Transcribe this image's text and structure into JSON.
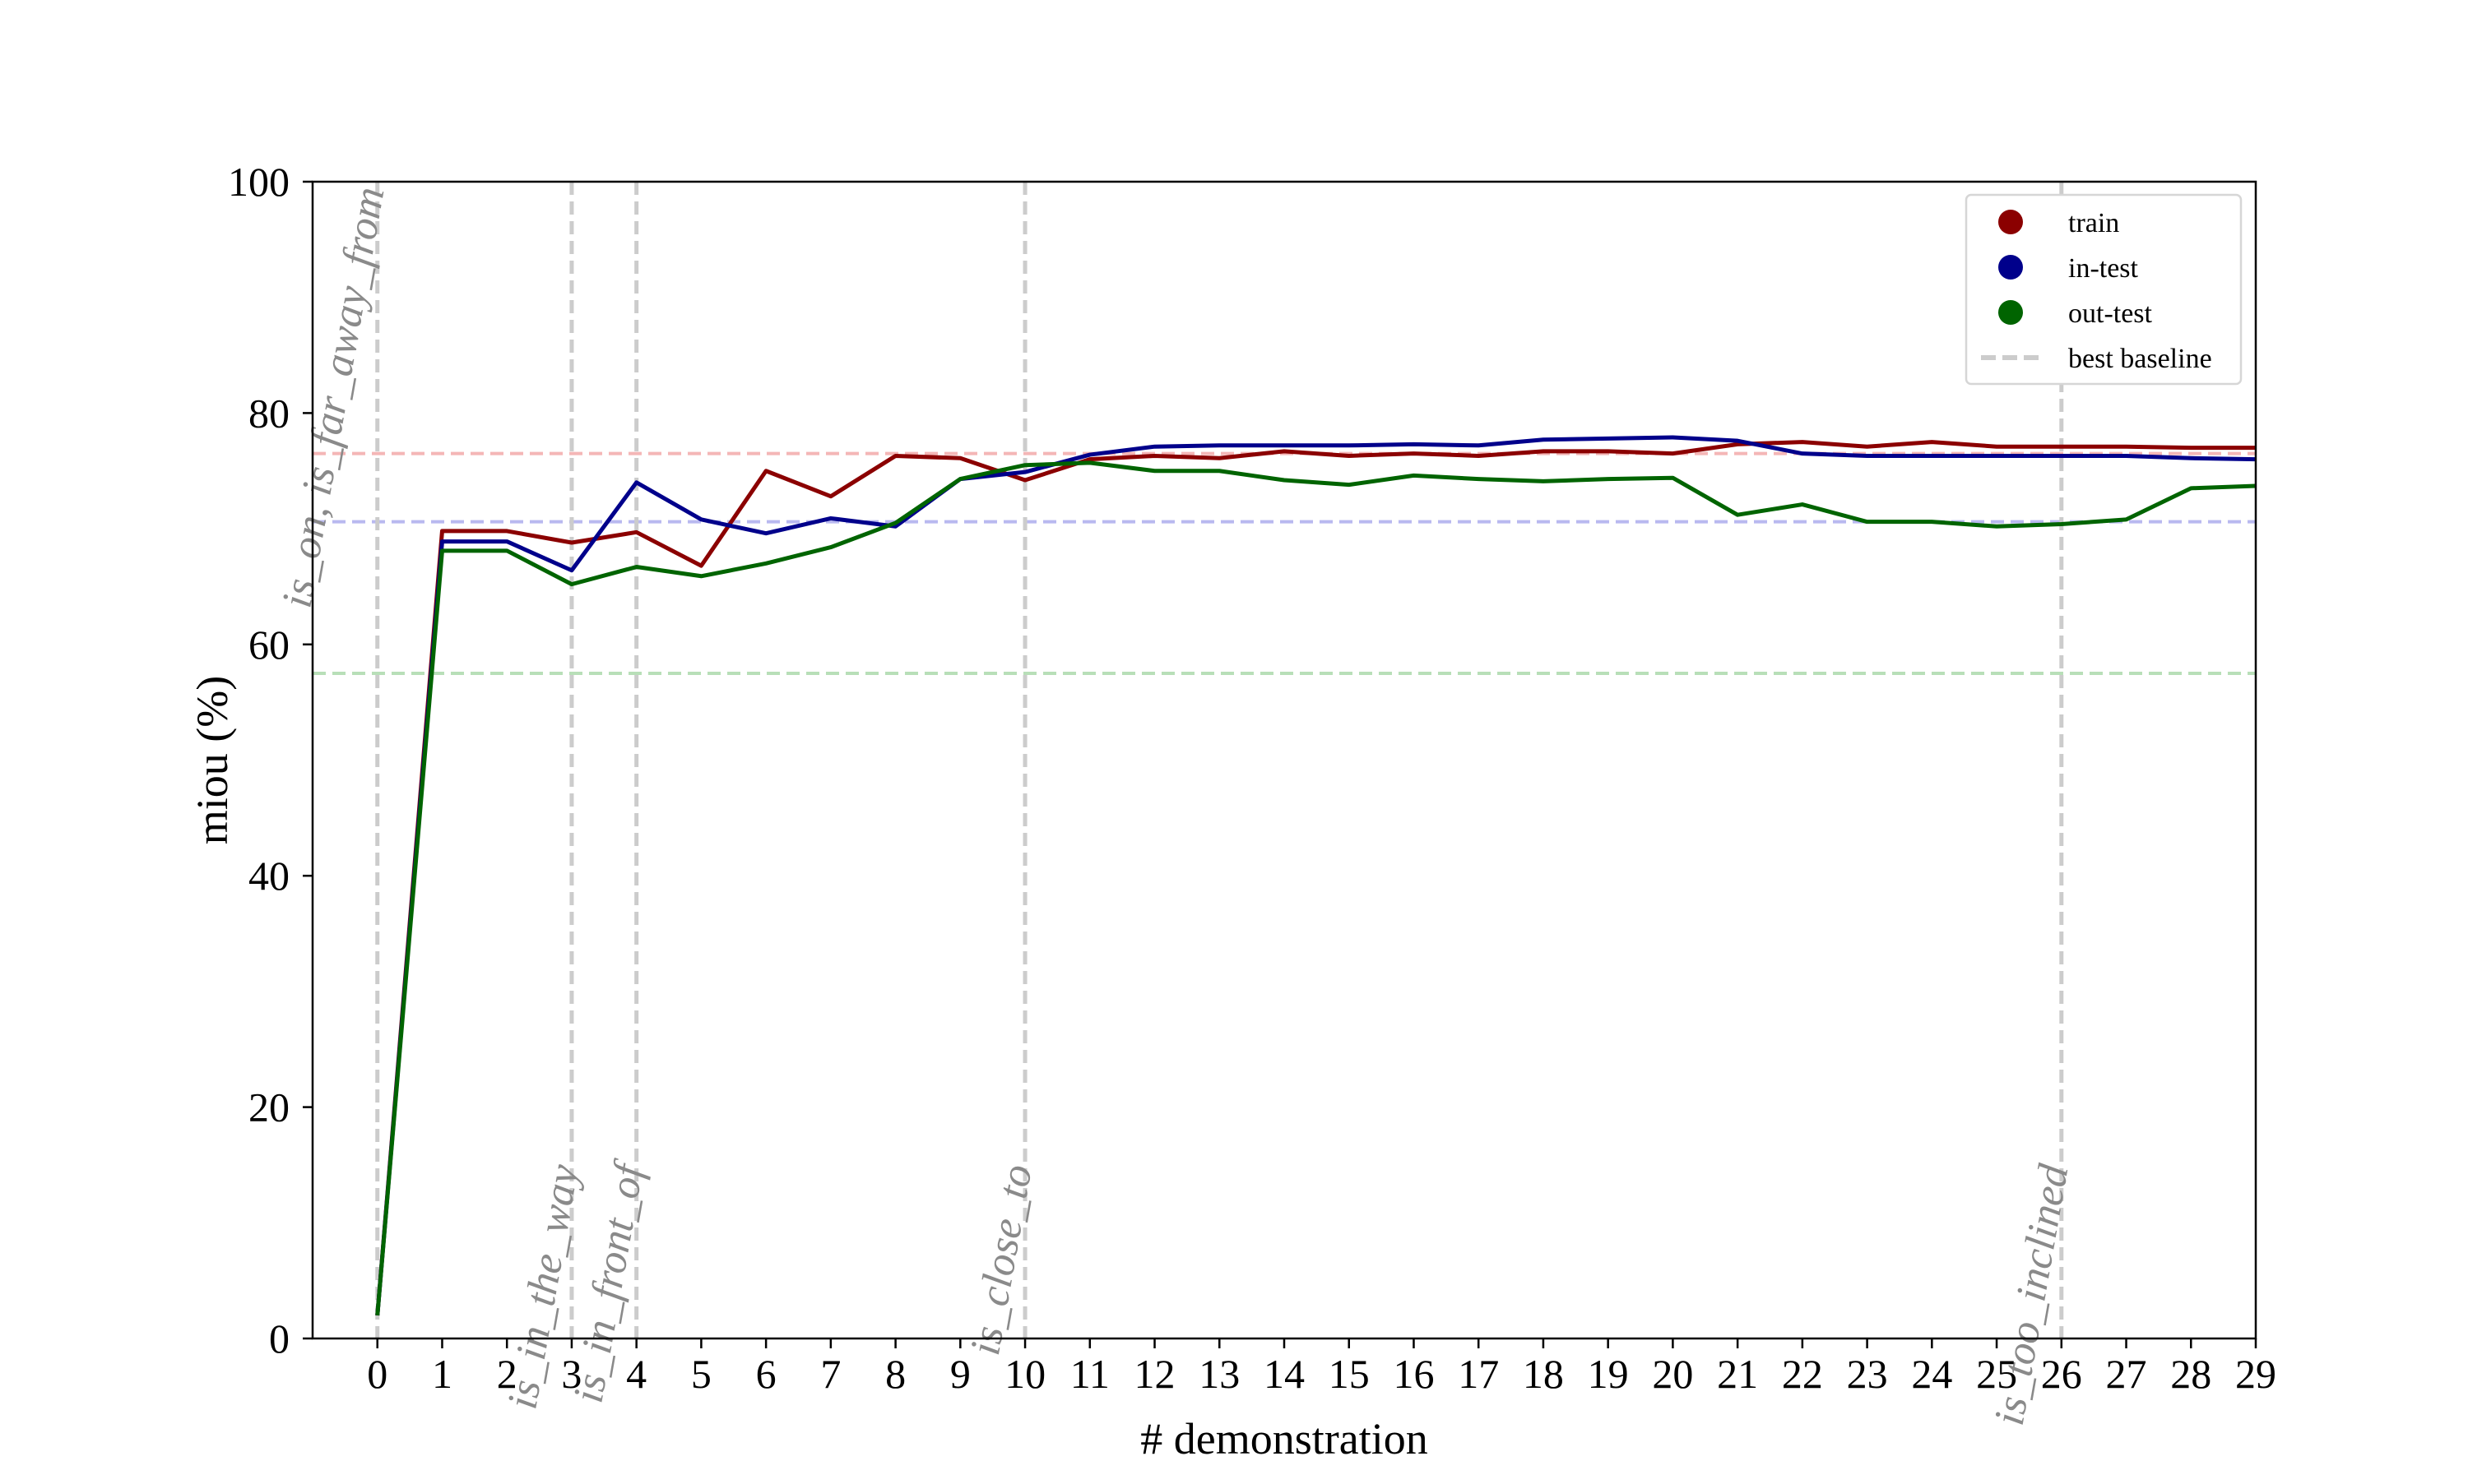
{
  "chart_data": {
    "type": "line",
    "title": "",
    "xlabel": "# demonstration",
    "ylabel": "miou (%)",
    "xlim": [
      -1,
      29
    ],
    "ylim": [
      0,
      100
    ],
    "xticks": [
      0,
      1,
      2,
      3,
      4,
      5,
      6,
      7,
      8,
      9,
      10,
      11,
      12,
      13,
      14,
      15,
      16,
      17,
      18,
      19,
      20,
      21,
      22,
      23,
      24,
      25,
      26,
      27,
      28,
      29
    ],
    "yticks": [
      0,
      20,
      40,
      60,
      80,
      100
    ],
    "grid": false,
    "legend_position": "top-right",
    "x": [
      0,
      1,
      2,
      3,
      4,
      5,
      6,
      7,
      8,
      9,
      10,
      11,
      12,
      13,
      14,
      15,
      16,
      17,
      18,
      19,
      20,
      21,
      22,
      23,
      24,
      25,
      26,
      27,
      28,
      29
    ],
    "series": [
      {
        "name": "train",
        "color": "#8b0000",
        "values": [
          2,
          69.8,
          69.8,
          68.8,
          69.7,
          66.8,
          75,
          72.8,
          76.3,
          76.1,
          74.2,
          76,
          76.3,
          76.1,
          76.7,
          76.3,
          76.5,
          76.3,
          76.7,
          76.7,
          76.5,
          77.3,
          77.5,
          77.1,
          77.5,
          77.1,
          77.1,
          77.1,
          77.0,
          77.0
        ]
      },
      {
        "name": "in-test",
        "color": "#00008b",
        "values": [
          2,
          68.9,
          68.9,
          66.4,
          74,
          70.8,
          69.6,
          70.9,
          70.2,
          74.3,
          74.9,
          76.4,
          77.1,
          77.2,
          77.2,
          77.2,
          77.3,
          77.2,
          77.7,
          77.8,
          77.9,
          77.6,
          76.5,
          76.3,
          76.3,
          76.3,
          76.3,
          76.3,
          76.1,
          76.0
        ]
      },
      {
        "name": "out-test",
        "color": "#006400",
        "values": [
          2,
          68.1,
          68.1,
          65.2,
          66.7,
          65.9,
          67.0,
          68.4,
          70.5,
          74.3,
          75.5,
          75.7,
          75.0,
          75.0,
          74.2,
          73.8,
          74.6,
          74.3,
          74.1,
          74.3,
          74.4,
          71.2,
          72.1,
          70.6,
          70.6,
          70.2,
          70.4,
          70.8,
          73.5,
          73.7
        ]
      }
    ],
    "baselines": [
      {
        "series": "train",
        "value": 76.5,
        "color": "#f4b6b6"
      },
      {
        "series": "in-test",
        "value": 70.6,
        "color": "#b9b9f0"
      },
      {
        "series": "out-test",
        "value": 57.5,
        "color": "#b8dfb8"
      }
    ],
    "baseline_legend_label": "best baseline",
    "vertical_markers": [
      {
        "x": 0,
        "label": "is_on, is_far_away_from",
        "label_pos": "top"
      },
      {
        "x": 3,
        "label": "is_in_the_way",
        "label_pos": "bottom"
      },
      {
        "x": 4,
        "label": "is_in_front_of",
        "label_pos": "bottom"
      },
      {
        "x": 10,
        "label": "is_close_to",
        "label_pos": "bottom"
      },
      {
        "x": 26,
        "label": "is_too_inclined",
        "label_pos": "bottom"
      }
    ],
    "marker_color": "#cccccc"
  }
}
